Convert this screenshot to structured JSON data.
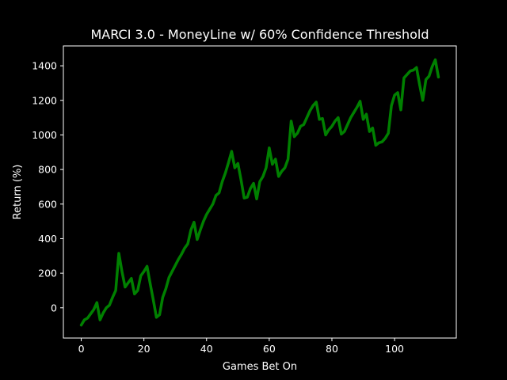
{
  "chart_data": {
    "type": "line",
    "title": "MARCI 3.0 - MoneyLine w/ 60% Confidence Threshold",
    "xlabel": "Games Bet On",
    "ylabel": "Return (%)",
    "xlim": [
      -5.7,
      119.7
    ],
    "ylim": [
      -175,
      1515
    ],
    "xticks": [
      0,
      20,
      40,
      60,
      80,
      100
    ],
    "yticks": [
      0,
      200,
      400,
      600,
      800,
      1000,
      1200,
      1400
    ],
    "grid": false,
    "legend": "none",
    "series": [
      {
        "color": "#008000",
        "x": [
          0,
          1,
          2,
          3,
          4,
          5,
          6,
          7,
          8,
          9,
          10,
          11,
          12,
          13,
          14,
          15,
          16,
          17,
          18,
          19,
          20,
          21,
          22,
          23,
          24,
          25,
          26,
          27,
          28,
          29,
          30,
          31,
          32,
          33,
          34,
          35,
          36,
          37,
          38,
          39,
          40,
          41,
          42,
          43,
          44,
          45,
          46,
          47,
          48,
          49,
          50,
          51,
          52,
          53,
          54,
          55,
          56,
          57,
          58,
          59,
          60,
          61,
          62,
          63,
          64,
          65,
          66,
          67,
          68,
          69,
          70,
          71,
          72,
          73,
          74,
          75,
          76,
          77,
          78,
          79,
          80,
          81,
          82,
          83,
          84,
          85,
          86,
          87,
          88,
          89,
          90,
          91,
          92,
          93,
          94,
          95,
          96,
          97,
          98,
          99,
          100,
          101,
          102,
          103,
          104,
          105,
          106,
          107,
          108,
          109,
          110,
          111,
          112,
          113,
          114
        ],
        "y": [
          -100,
          -70,
          -60,
          -35,
          -10,
          30,
          -70,
          -30,
          0,
          15,
          60,
          100,
          315,
          210,
          120,
          145,
          170,
          80,
          100,
          185,
          210,
          240,
          140,
          45,
          -55,
          -40,
          60,
          110,
          175,
          210,
          245,
          280,
          310,
          345,
          370,
          450,
          495,
          395,
          450,
          500,
          540,
          570,
          600,
          650,
          665,
          730,
          780,
          840,
          905,
          810,
          835,
          740,
          635,
          640,
          690,
          720,
          630,
          730,
          760,
          810,
          925,
          830,
          860,
          760,
          790,
          810,
          860,
          1080,
          990,
          1010,
          1050,
          1060,
          1100,
          1140,
          1170,
          1190,
          1090,
          1095,
          1000,
          1030,
          1050,
          1080,
          1100,
          1005,
          1020,
          1060,
          1100,
          1130,
          1160,
          1195,
          1090,
          1120,
          1020,
          1040,
          940,
          955,
          960,
          980,
          1010,
          1170,
          1230,
          1245,
          1145,
          1330,
          1350,
          1370,
          1375,
          1390,
          1290,
          1200,
          1320,
          1340,
          1395,
          1435,
          1335
        ]
      }
    ]
  }
}
